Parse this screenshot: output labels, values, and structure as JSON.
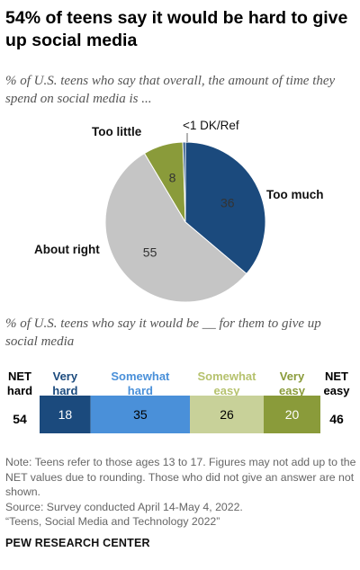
{
  "title": "54% of teens say it would be hard to give up social media",
  "chart_data": [
    {
      "type": "pie",
      "subtitle": "% of U.S. teens who say that overall, the amount of time they spend on social media is ...",
      "slices": [
        {
          "label": "Too much",
          "value": 36,
          "value_label": "36",
          "color": "#1b4a7d"
        },
        {
          "label": "About right",
          "value": 55,
          "value_label": "55",
          "color": "#c5c5c5"
        },
        {
          "label": "Too little",
          "value": 8,
          "value_label": "8",
          "color": "#8a9b3a"
        },
        {
          "label": "<1 DK/Ref",
          "value": 0.5,
          "value_label": "",
          "color": "#1b4a7d"
        }
      ]
    },
    {
      "type": "bar",
      "orientation": "horizontal-stacked",
      "subtitle": "% of U.S. teens who say it would be __ for them to give up social media",
      "net_hard": {
        "label": "NET hard",
        "label_lines": [
          "NET",
          "hard"
        ],
        "value": 54,
        "value_label": "54"
      },
      "net_easy": {
        "label": "NET easy",
        "label_lines": [
          "NET",
          "easy"
        ],
        "value": 46,
        "value_label": "46"
      },
      "segments": [
        {
          "label": "Very hard",
          "label_lines": [
            "Very",
            "hard"
          ],
          "value": 18,
          "value_label": "18",
          "color": "#1b4a7d",
          "label_color": "#1b4a7d",
          "text_color": "#ffffff"
        },
        {
          "label": "Somewhat hard",
          "label_lines": [
            "Somewhat",
            "hard"
          ],
          "value": 35,
          "value_label": "35",
          "color": "#4a90d9",
          "label_color": "#4a90d9",
          "text_color": "#000000"
        },
        {
          "label": "Somewhat easy",
          "label_lines": [
            "Somewhat",
            "easy"
          ],
          "value": 26,
          "value_label": "26",
          "color": "#c8d199",
          "label_color": "#b6c26e",
          "text_color": "#000000"
        },
        {
          "label": "Very easy",
          "label_lines": [
            "Very",
            "easy"
          ],
          "value": 20,
          "value_label": "20",
          "color": "#8a9b3a",
          "label_color": "#8a9b3a",
          "text_color": "#ffffff"
        }
      ]
    }
  ],
  "notes": {
    "note": "Note: Teens refer to those ages 13 to 17. Figures may not add up to the NET values due to rounding. Those who did not give an answer are not shown.",
    "source": "Source: Survey conducted April 14-May 4, 2022.",
    "report": "“Teens, Social Media and Technology 2022”"
  },
  "logo": "PEW RESEARCH CENTER"
}
